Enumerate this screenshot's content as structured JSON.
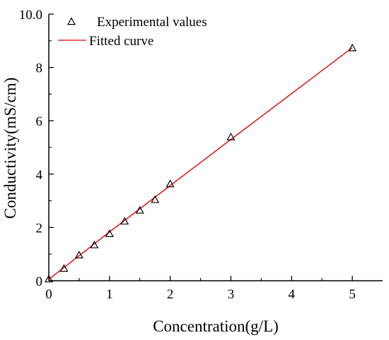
{
  "chart_data": {
    "type": "scatter",
    "xlabel": "Concentration(g/L)",
    "ylabel": "Conductivity(mS/cm)",
    "xlim": [
      0,
      5.5
    ],
    "ylim": [
      0,
      10
    ],
    "x_ticks": [
      0,
      1,
      2,
      3,
      4,
      5
    ],
    "y_ticks": [
      0,
      2,
      4,
      6,
      8
    ],
    "y_top_label": "10.0",
    "grid": false,
    "legend_position": "top-left",
    "series": [
      {
        "name": "Experimental values",
        "type": "scatter",
        "marker": "open-triangle",
        "color": "#000000",
        "x": [
          0,
          0.25,
          0.5,
          0.75,
          1.0,
          1.25,
          1.5,
          1.75,
          2.0,
          3.0,
          5.0
        ],
        "y": [
          0.05,
          0.45,
          0.95,
          1.33,
          1.75,
          2.22,
          2.63,
          3.03,
          3.62,
          5.38,
          8.72
        ]
      },
      {
        "name": "Fitted curve",
        "type": "line",
        "color": "#e00000",
        "x": [
          0,
          1,
          2,
          3,
          4,
          5
        ],
        "y": [
          0.05,
          1.83,
          3.57,
          5.3,
          7.02,
          8.74
        ]
      }
    ]
  }
}
